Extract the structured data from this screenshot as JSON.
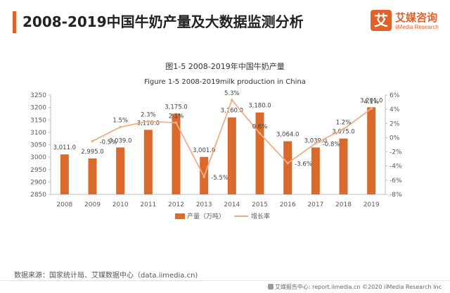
{
  "page": {
    "title": "2008-2019中国牛奶产量及大数据监测分析",
    "brand_name": "艾媒咨询",
    "brand_sub": "iiMedia Research",
    "brand_logo_glyph": "艾",
    "source": "数据来源：国家统计局、艾媒数据中心（data.iimedia.cn)",
    "footer": "艾媒报告中心: report.iimedia.cn  ©2020  iiMedia Research  Inc"
  },
  "colors": {
    "accent": "#e0612a",
    "bar": "#d96a2b",
    "line": "#f0ad88"
  },
  "chart_data": {
    "type": "bar",
    "title": "图1-5 2008-2019年中国牛奶产量",
    "subtitle": "Figure 1-5 2008-2019milk production in China",
    "categories": [
      "2008",
      "2009",
      "2010",
      "2011",
      "2012",
      "2013",
      "2014",
      "2015",
      "2016",
      "2017",
      "2018",
      "2019"
    ],
    "series": [
      {
        "name": "产量（万吨）",
        "type": "bar",
        "axis": "left",
        "values": [
          3011.0,
          2995.0,
          3039.0,
          3110.0,
          3175.0,
          3001.0,
          3160.0,
          3180.0,
          3064.0,
          3039.0,
          3075.0,
          3201.0
        ],
        "labels": [
          "3,011.0",
          "2,995.0",
          "3,039.0",
          "3,110.0",
          "3,175.0",
          "3,001.0",
          "3,160.0",
          "3,180.0",
          "3,064.0",
          "3,039.0",
          "3,075.0",
          "3,201.0"
        ]
      },
      {
        "name": "增长率",
        "type": "line",
        "axis": "right",
        "values": [
          null,
          -0.5,
          1.5,
          2.3,
          2.1,
          -5.5,
          5.3,
          0.6,
          -3.6,
          -0.8,
          1.2,
          4.1
        ],
        "labels": [
          "",
          "-0.5%",
          "1.5%",
          "2.3%",
          "2.1%",
          "-5.5%",
          "5.3%",
          "0.6%",
          "-3.6%",
          "-0.8%",
          "1.2%",
          "4.1%"
        ]
      }
    ],
    "y_left": {
      "min": 2850,
      "max": 3250,
      "ticks": [
        2850,
        2900,
        2950,
        3000,
        3050,
        3100,
        3150,
        3200,
        3250
      ],
      "tick_labels": [
        "2850",
        "2900",
        "2950",
        "3000",
        "3050",
        "3100",
        "3150",
        "3200",
        "3250"
      ]
    },
    "y_right": {
      "min": -8,
      "max": 6,
      "ticks": [
        -8,
        -6,
        -4,
        -2,
        0,
        2,
        4,
        6
      ],
      "tick_labels": [
        "-8%",
        "-6%",
        "-4%",
        "-2%",
        "0%",
        "2%",
        "4%",
        "6%"
      ]
    },
    "grid": false,
    "legend_position": "bottom"
  }
}
